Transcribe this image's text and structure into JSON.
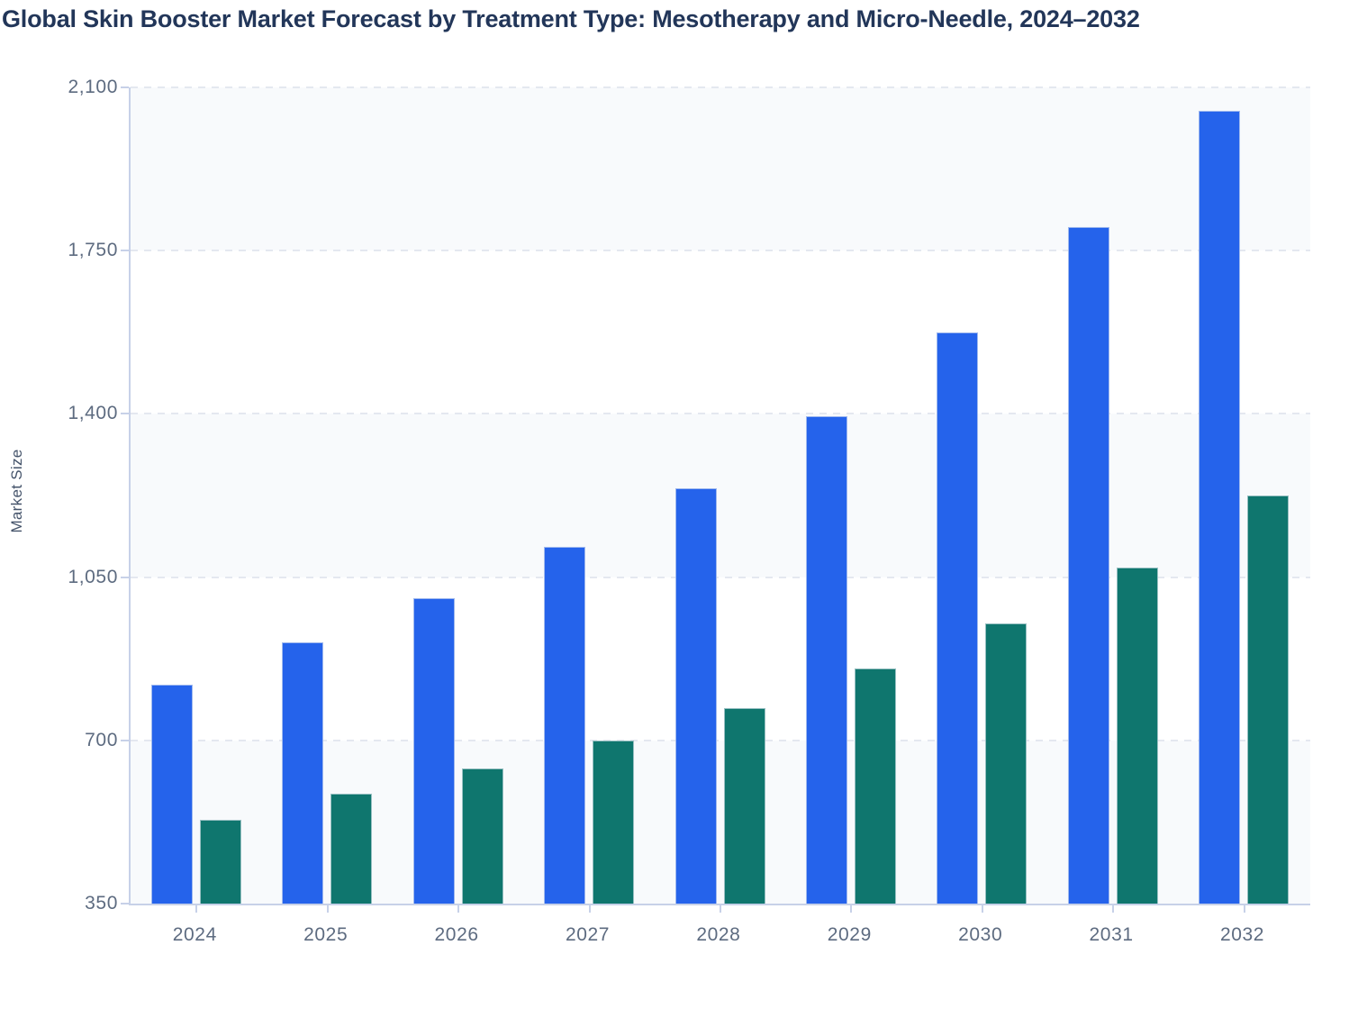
{
  "title": "Global Skin Booster Market Forecast by Treatment Type: Mesotherapy and Micro-Needle, 2024–2032",
  "background_color": "#ffffff",
  "chart_data": {
    "type": "bar",
    "title": "Global Skin Booster Market Forecast by Treatment Type: Mesotherapy and Micro-Needle, 2024–2032",
    "xlabel": "",
    "ylabel": "Market Size",
    "categories": [
      "2024",
      "2025",
      "2026",
      "2027",
      "2028",
      "2029",
      "2030",
      "2031",
      "2032"
    ],
    "series": [
      {
        "name": "Mesotherapy",
        "color": "#2563eb",
        "values": [
          820,
          910,
          1005,
          1115,
          1240,
          1395,
          1575,
          1800,
          2050
        ]
      },
      {
        "name": "Micro-Needle",
        "color": "#0f766e",
        "values": [
          530,
          585,
          640,
          700,
          770,
          855,
          950,
          1070,
          1225
        ]
      }
    ],
    "ylim": [
      350,
      2100
    ],
    "ytick_values": [
      2100,
      1750,
      1400,
      1050,
      700,
      350
    ],
    "ytick_labels": [
      "2,100",
      "1,750",
      "1,400",
      "1,050",
      "700",
      "350"
    ],
    "grid": "horizontal-dashed",
    "plot_bands": "alternating-light-gray",
    "legend_position": "none"
  },
  "style": {
    "band_fill": "#f8fafc",
    "gridline_color": "#e4e8f0",
    "axis_line_color": "#c7d1e8",
    "tick_label_color": "#5d6b80",
    "title_color": "#223659",
    "axis_title_color": "#44536a"
  }
}
